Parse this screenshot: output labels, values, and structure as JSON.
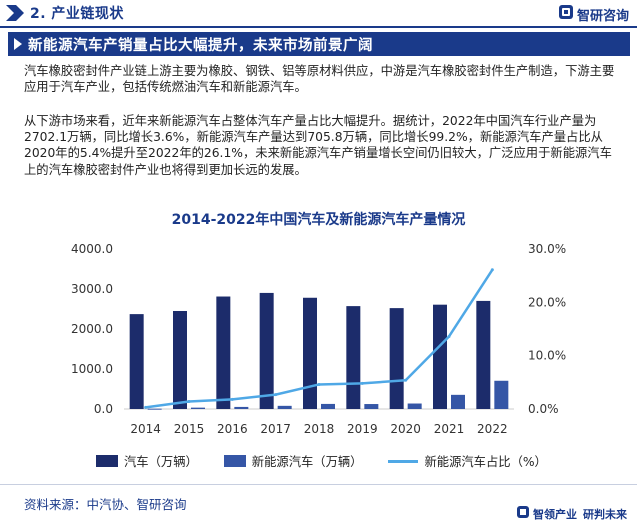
{
  "header": {
    "section_label": "2. 产业链现状",
    "brand": "智研咨询"
  },
  "headline": "新能源汽车产销量占比大幅提升，未来市场前景广阔",
  "paragraphs": [
    "汽车橡胶密封件产业链上游主要为橡胶、钢铁、铝等原材料供应，中游是汽车橡胶密封件生产制造，下游主要应用于汽车产业，包括传统燃油汽车和新能源汽车。",
    "从下游市场来看，近年来新能源汽车占整体汽车产量占比大幅提升。据统计，2022年中国汽车行业产量为2702.1万辆，同比增长3.6%，新能源汽车产量达到705.8万辆，同比增长99.2%，新能源汽车产量占比从2020年的5.4%提升至2022年的26.1%，未来新能源汽车产销量增长空间仍旧较大，广泛应用于新能源汽车上的汽车橡胶密封件产业也将得到更加长远的发展。"
  ],
  "colors": {
    "primary": "#1a3a8a",
    "bar_auto": "#1c2c6b",
    "bar_nev": "#3556a6",
    "line_share": "#4fa8e6"
  },
  "chart_data": {
    "type": "bar",
    "title": "2014-2022年中国汽车及新能源汽车产量情况",
    "categories": [
      "2014",
      "2015",
      "2016",
      "2017",
      "2018",
      "2019",
      "2020",
      "2021",
      "2022"
    ],
    "series": [
      {
        "name": "汽车（万辆）",
        "type": "bar",
        "axis": "left",
        "values": [
          2372,
          2450,
          2812,
          2902,
          2781,
          2572,
          2522,
          2608,
          2702.1
        ]
      },
      {
        "name": "新能源汽车（万辆）",
        "type": "bar",
        "axis": "left",
        "values": [
          8,
          34,
          52,
          79,
          127,
          124,
          137,
          354,
          705.8
        ]
      },
      {
        "name": "新能源汽车占比（%）",
        "type": "line",
        "axis": "right",
        "values": [
          0.3,
          1.4,
          1.8,
          2.7,
          4.6,
          4.8,
          5.4,
          13.6,
          26.1
        ]
      }
    ],
    "left_axis": {
      "ylim": [
        0,
        4000
      ],
      "ticks": [
        "0.0",
        "1000.0",
        "2000.0",
        "3000.0",
        "4000.0"
      ]
    },
    "right_axis": {
      "ylim": [
        0,
        30
      ],
      "ticks": [
        "0.0%",
        "10.0%",
        "20.0%",
        "30.0%"
      ]
    },
    "grid": false,
    "legend_position": "bottom"
  },
  "footer": {
    "source": "资料来源：中汽协、智研咨询",
    "brand_a": "智领产业",
    "brand_b": "研判未来"
  }
}
